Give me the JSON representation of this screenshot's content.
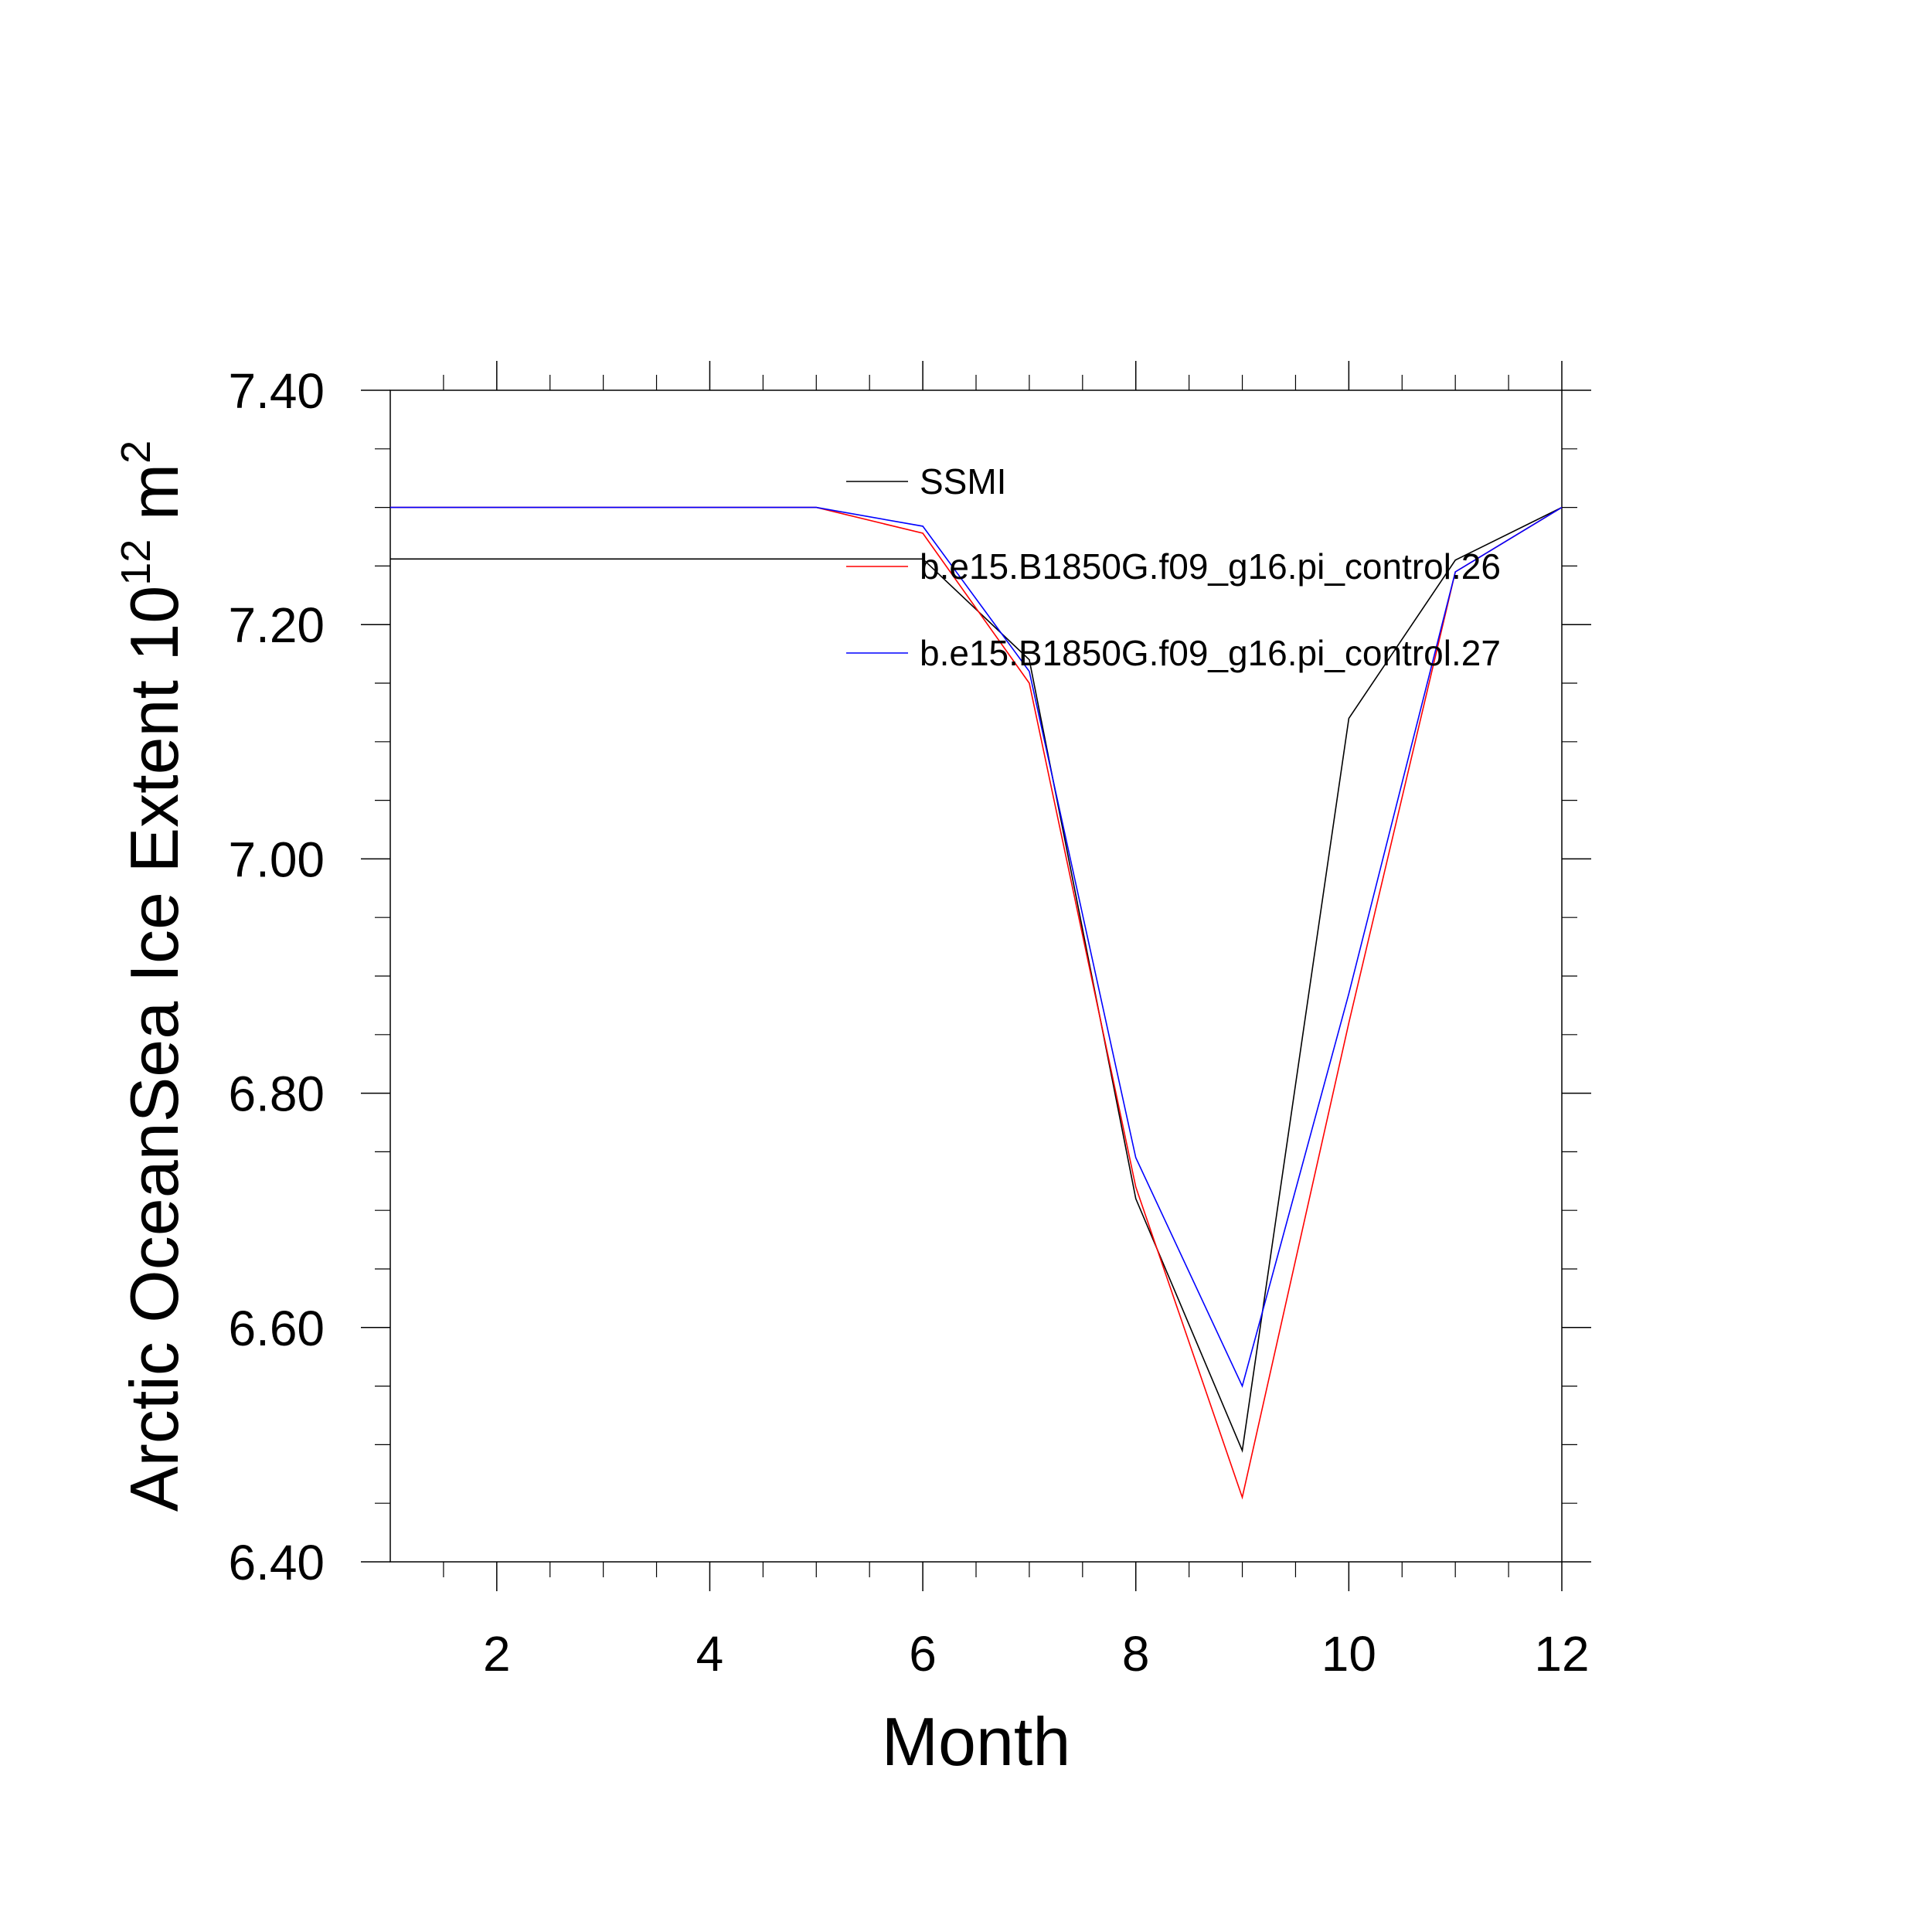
{
  "chart_data": {
    "type": "line",
    "xlabel": "Month",
    "ylabel": {
      "main": "Arctic OceanSea Ice Extent 10",
      "sup1": "12",
      "unit": " m",
      "sup2": "2"
    },
    "xlim": [
      1,
      12
    ],
    "ylim": [
      6.4,
      7.4
    ],
    "xticks": [
      2,
      4,
      6,
      8,
      10,
      12
    ],
    "yticks": [
      6.4,
      6.6,
      6.8,
      7.0,
      7.2,
      7.4
    ],
    "ytick_labels": [
      "6.40",
      "6.60",
      "6.80",
      "7.00",
      "7.20",
      "7.40"
    ],
    "grid": false,
    "legend_position": "top-right (inside)",
    "x": [
      1,
      2,
      3,
      4,
      5,
      6,
      7,
      8,
      9,
      10,
      11,
      12
    ],
    "series": [
      {
        "name": "SSMI",
        "color": "#000000",
        "values": [
          7.256,
          7.256,
          7.256,
          7.256,
          7.256,
          7.256,
          7.17,
          6.71,
          6.495,
          7.12,
          7.255,
          7.3
        ]
      },
      {
        "name": "b.e15.B1850G.f09_g16.pi_control.26",
        "color": "#ff0000",
        "values": [
          7.3,
          7.3,
          7.3,
          7.3,
          7.3,
          7.278,
          7.15,
          6.72,
          6.455,
          6.86,
          7.245,
          7.3
        ]
      },
      {
        "name": "b.e15.B1850G.f09_g16.pi_control.27",
        "color": "#0000ff",
        "values": [
          7.3,
          7.3,
          7.3,
          7.3,
          7.3,
          7.284,
          7.16,
          6.745,
          6.55,
          6.885,
          7.245,
          7.3
        ]
      }
    ]
  }
}
